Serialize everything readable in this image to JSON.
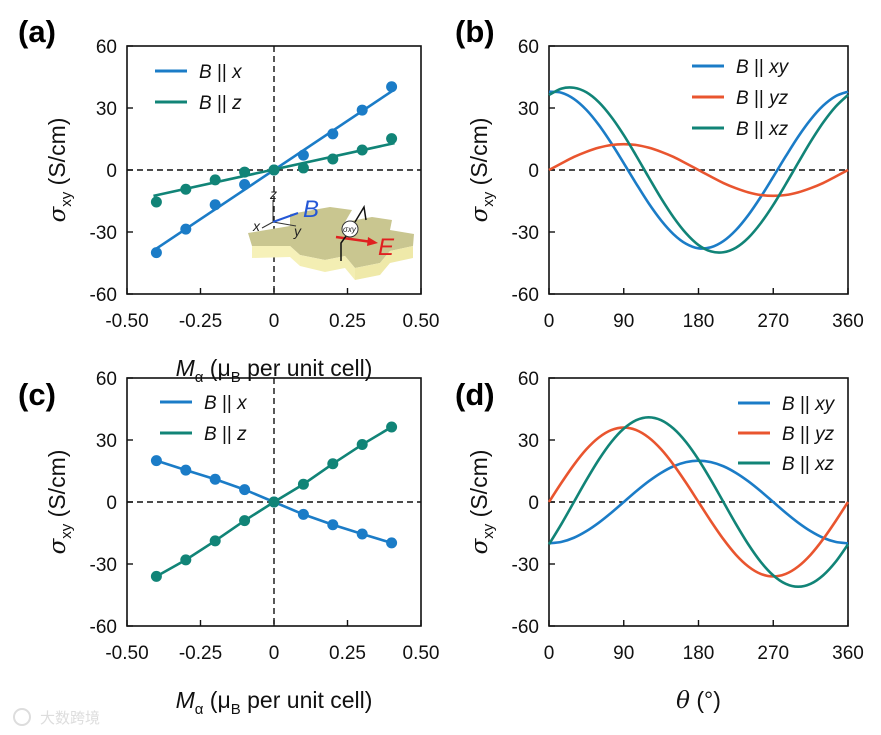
{
  "colors": {
    "blue": "#1b7cc7",
    "green": "#118477",
    "red": "#e9552f",
    "axis": "#111111"
  },
  "watermark": "大数跨境",
  "inset_labels": {
    "z": "z",
    "x": "x",
    "y": "y",
    "B": "B",
    "sigma": "σxy",
    "E": "E"
  },
  "chart_data": [
    {
      "panel": "(a)",
      "type": "scatter",
      "xlabel_parts": {
        "M": "M",
        "sub": "α",
        "open": " (μ",
        "B": "B",
        "rest": " per unit cell)"
      },
      "ylabel_parts": {
        "sigma": "σ",
        "sub": "xy",
        "unit": " (S/cm)"
      },
      "xlim": [
        -0.5,
        0.5
      ],
      "ylim": [
        -60,
        60
      ],
      "xticks": [
        "-0.50",
        "-0.25",
        "0",
        "0.25",
        "0.50"
      ],
      "yticks": [
        "-60",
        "-30",
        "0",
        "30",
        "60"
      ],
      "x": [
        -0.4,
        -0.3,
        -0.2,
        -0.1,
        0,
        0.1,
        0.2,
        0.3,
        0.4
      ],
      "series": [
        {
          "name": "B || x",
          "legend": {
            "B": "B",
            "par": " || ",
            "dir": "x"
          },
          "color": "blue",
          "values": [
            -40,
            -28.6,
            -16.8,
            -7,
            0,
            7.2,
            17.5,
            29,
            40.3
          ],
          "fit": [
            [
              -0.41,
              -39
            ],
            [
              0.41,
              39
            ]
          ]
        },
        {
          "name": "B || z",
          "legend": {
            "B": "B",
            "par": " || ",
            "dir": "z"
          },
          "color": "green",
          "values": [
            -15.5,
            -9.3,
            -4.8,
            -1,
            0,
            1,
            5.3,
            9.7,
            15.2
          ],
          "fit": [
            [
              -0.41,
              -12.5
            ],
            [
              0.41,
              13
            ]
          ]
        }
      ]
    },
    {
      "panel": "(b)",
      "type": "line",
      "ylabel_parts": {
        "sigma": "σ",
        "sub": "xy",
        "unit": " (S/cm)"
      },
      "xlim": [
        0,
        360
      ],
      "ylim": [
        -60,
        60
      ],
      "xticks": [
        "0",
        "90",
        "180",
        "270",
        "360"
      ],
      "yticks": [
        "-60",
        "-30",
        "0",
        "30",
        "60"
      ],
      "x": [
        0,
        15,
        30,
        45,
        60,
        75,
        90,
        105,
        120,
        135,
        150,
        165,
        180,
        195,
        210,
        225,
        240,
        255,
        270,
        285,
        300,
        315,
        330,
        345,
        360
      ],
      "series": [
        {
          "name": "B || xy",
          "legend": {
            "B": "B",
            "par": " || ",
            "dir": "xy"
          },
          "color": "blue",
          "values": [
            37.9,
            37.4,
            34.4,
            29.1,
            21.8,
            13.0,
            3.3,
            -6.6,
            -16.1,
            -24.4,
            -31.1,
            -35.7,
            -37.9,
            -37.4,
            -34.4,
            -29.1,
            -21.8,
            -13.0,
            -3.3,
            6.6,
            16.1,
            24.4,
            31.1,
            35.7,
            37.9
          ]
        },
        {
          "name": "B || yz",
          "legend": {
            "B": "B",
            "par": " || ",
            "dir": "yz"
          },
          "color": "red",
          "values": [
            0,
            3.2,
            6.3,
            8.8,
            10.8,
            12.1,
            12.5,
            12.1,
            10.8,
            8.8,
            6.3,
            3.2,
            0,
            -3.2,
            -6.3,
            -8.8,
            -10.8,
            -12.1,
            -12.5,
            -12.1,
            -10.8,
            -8.8,
            -6.3,
            -3.2,
            0
          ]
        },
        {
          "name": "B || xz",
          "legend": {
            "B": "B",
            "par": " || ",
            "dir": "xz"
          },
          "color": "green",
          "values": [
            36.3,
            39.4,
            39.8,
            37.6,
            32.8,
            25.7,
            16.9,
            6.9,
            -3.5,
            -13.7,
            -22.9,
            -30.6,
            -36.3,
            -39.4,
            -39.8,
            -37.6,
            -32.8,
            -25.7,
            -16.9,
            -6.9,
            3.5,
            13.7,
            22.9,
            30.6,
            36.3
          ]
        }
      ]
    },
    {
      "panel": "(c)",
      "type": "scatter",
      "xlabel_parts": {
        "M": "M",
        "sub": "α",
        "open": " (μ",
        "B": "B",
        "rest": " per unit cell)"
      },
      "ylabel_parts": {
        "sigma": "σ",
        "sub": "xy",
        "unit": " (S/cm)"
      },
      "xlim": [
        -0.5,
        0.5
      ],
      "ylim": [
        -60,
        60
      ],
      "xticks": [
        "-0.50",
        "-0.25",
        "0",
        "0.25",
        "0.50"
      ],
      "yticks": [
        "-60",
        "-30",
        "0",
        "30",
        "60"
      ],
      "x": [
        -0.4,
        -0.3,
        -0.2,
        -0.1,
        0,
        0.1,
        0.2,
        0.3,
        0.4
      ],
      "series": [
        {
          "name": "B || x",
          "legend": {
            "B": "B",
            "par": " || ",
            "dir": "x"
          },
          "color": "blue",
          "values": [
            20,
            15.4,
            11,
            6,
            0,
            -6,
            -11,
            -15.5,
            -19.8
          ]
        },
        {
          "name": "B || z",
          "legend": {
            "B": "B",
            "par": " || ",
            "dir": "z"
          },
          "color": "green",
          "values": [
            -36,
            -28,
            -18.8,
            -9,
            0,
            8.6,
            18.5,
            27.8,
            36.3
          ]
        }
      ]
    },
    {
      "panel": "(d)",
      "type": "line",
      "xlabel_parts": {
        "theta": "θ",
        "unit": " (°)"
      },
      "ylabel_parts": {
        "sigma": "σ",
        "sub": "xy",
        "unit": " (S/cm)"
      },
      "xlim": [
        0,
        360
      ],
      "ylim": [
        -60,
        60
      ],
      "xticks": [
        "0",
        "90",
        "180",
        "270",
        "360"
      ],
      "yticks": [
        "-60",
        "-30",
        "0",
        "30",
        "60"
      ],
      "x": [
        0,
        15,
        30,
        45,
        60,
        75,
        90,
        105,
        120,
        135,
        150,
        165,
        180,
        195,
        210,
        225,
        240,
        255,
        270,
        285,
        300,
        315,
        330,
        345,
        360
      ],
      "series": [
        {
          "name": "B || xy",
          "legend": {
            "B": "B",
            "par": " || ",
            "dir": "xy"
          },
          "color": "blue",
          "values": [
            -20,
            -19.3,
            -17.3,
            -14.1,
            -10,
            -5.2,
            0,
            5.2,
            10,
            14.1,
            17.3,
            19.3,
            20,
            19.3,
            17.3,
            14.1,
            10,
            5.2,
            0,
            -5.2,
            -10,
            -14.1,
            -17.3,
            -19.3,
            -20
          ]
        },
        {
          "name": "B || yz",
          "legend": {
            "B": "B",
            "par": " || ",
            "dir": "yz"
          },
          "color": "red",
          "values": [
            0,
            9.3,
            18,
            25.5,
            31.2,
            34.8,
            36,
            34.8,
            31.2,
            25.5,
            18,
            9.3,
            0,
            -9.3,
            -18,
            -25.5,
            -31.2,
            -34.8,
            -36,
            -34.8,
            -31.2,
            -25.5,
            -18,
            -9.3,
            0
          ]
        },
        {
          "name": "B || xz",
          "legend": {
            "B": "B",
            "par": " || ",
            "dir": "xz"
          },
          "color": "green",
          "values": [
            -20.5,
            -10.6,
            0,
            10.6,
            20.5,
            29.0,
            35.5,
            39.6,
            41,
            39.6,
            35.5,
            29.0,
            20.5,
            10.6,
            0,
            -10.6,
            -20.5,
            -29.0,
            -35.5,
            -39.6,
            -41,
            -39.6,
            -35.5,
            -29.0,
            -20.5
          ]
        }
      ]
    }
  ]
}
